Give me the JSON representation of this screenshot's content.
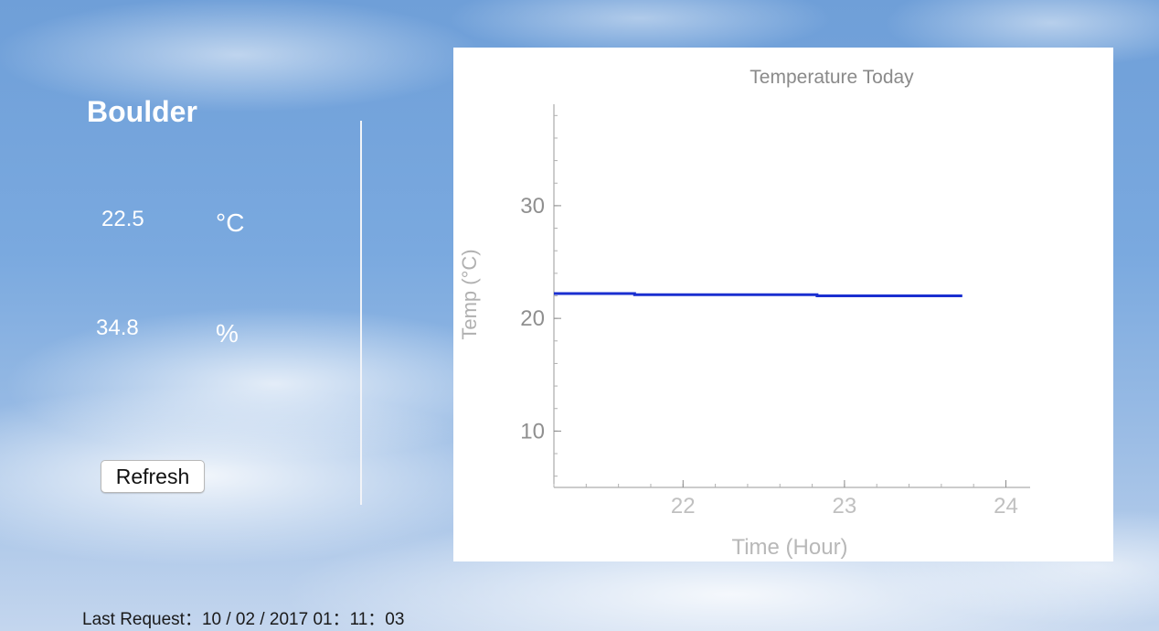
{
  "location": {
    "city": "Boulder"
  },
  "readings": {
    "temperature": {
      "value": "22.5",
      "unit": "°C"
    },
    "humidity": {
      "value": "34.8",
      "unit": "%"
    }
  },
  "refresh_button": {
    "label": "Refresh"
  },
  "status": {
    "last_request": "Last Request：10 / 02 / 2017 01：11：03"
  },
  "chart_data": {
    "type": "line",
    "title": "Temperature Today",
    "xlabel": "Time (Hour)",
    "ylabel": "Temp (°C)",
    "xlim": [
      21.2,
      24.15
    ],
    "ylim": [
      5,
      39
    ],
    "xticks": [
      22,
      23,
      24
    ],
    "yticks": [
      10,
      20,
      30
    ],
    "grid": false,
    "series": [
      {
        "color": "#1a2fd0",
        "x": [
          21.2,
          21.7,
          21.7,
          22.83,
          22.83,
          23.73
        ],
        "y": [
          22.2,
          22.2,
          22.1,
          22.1,
          22.0,
          22.0
        ]
      }
    ]
  }
}
